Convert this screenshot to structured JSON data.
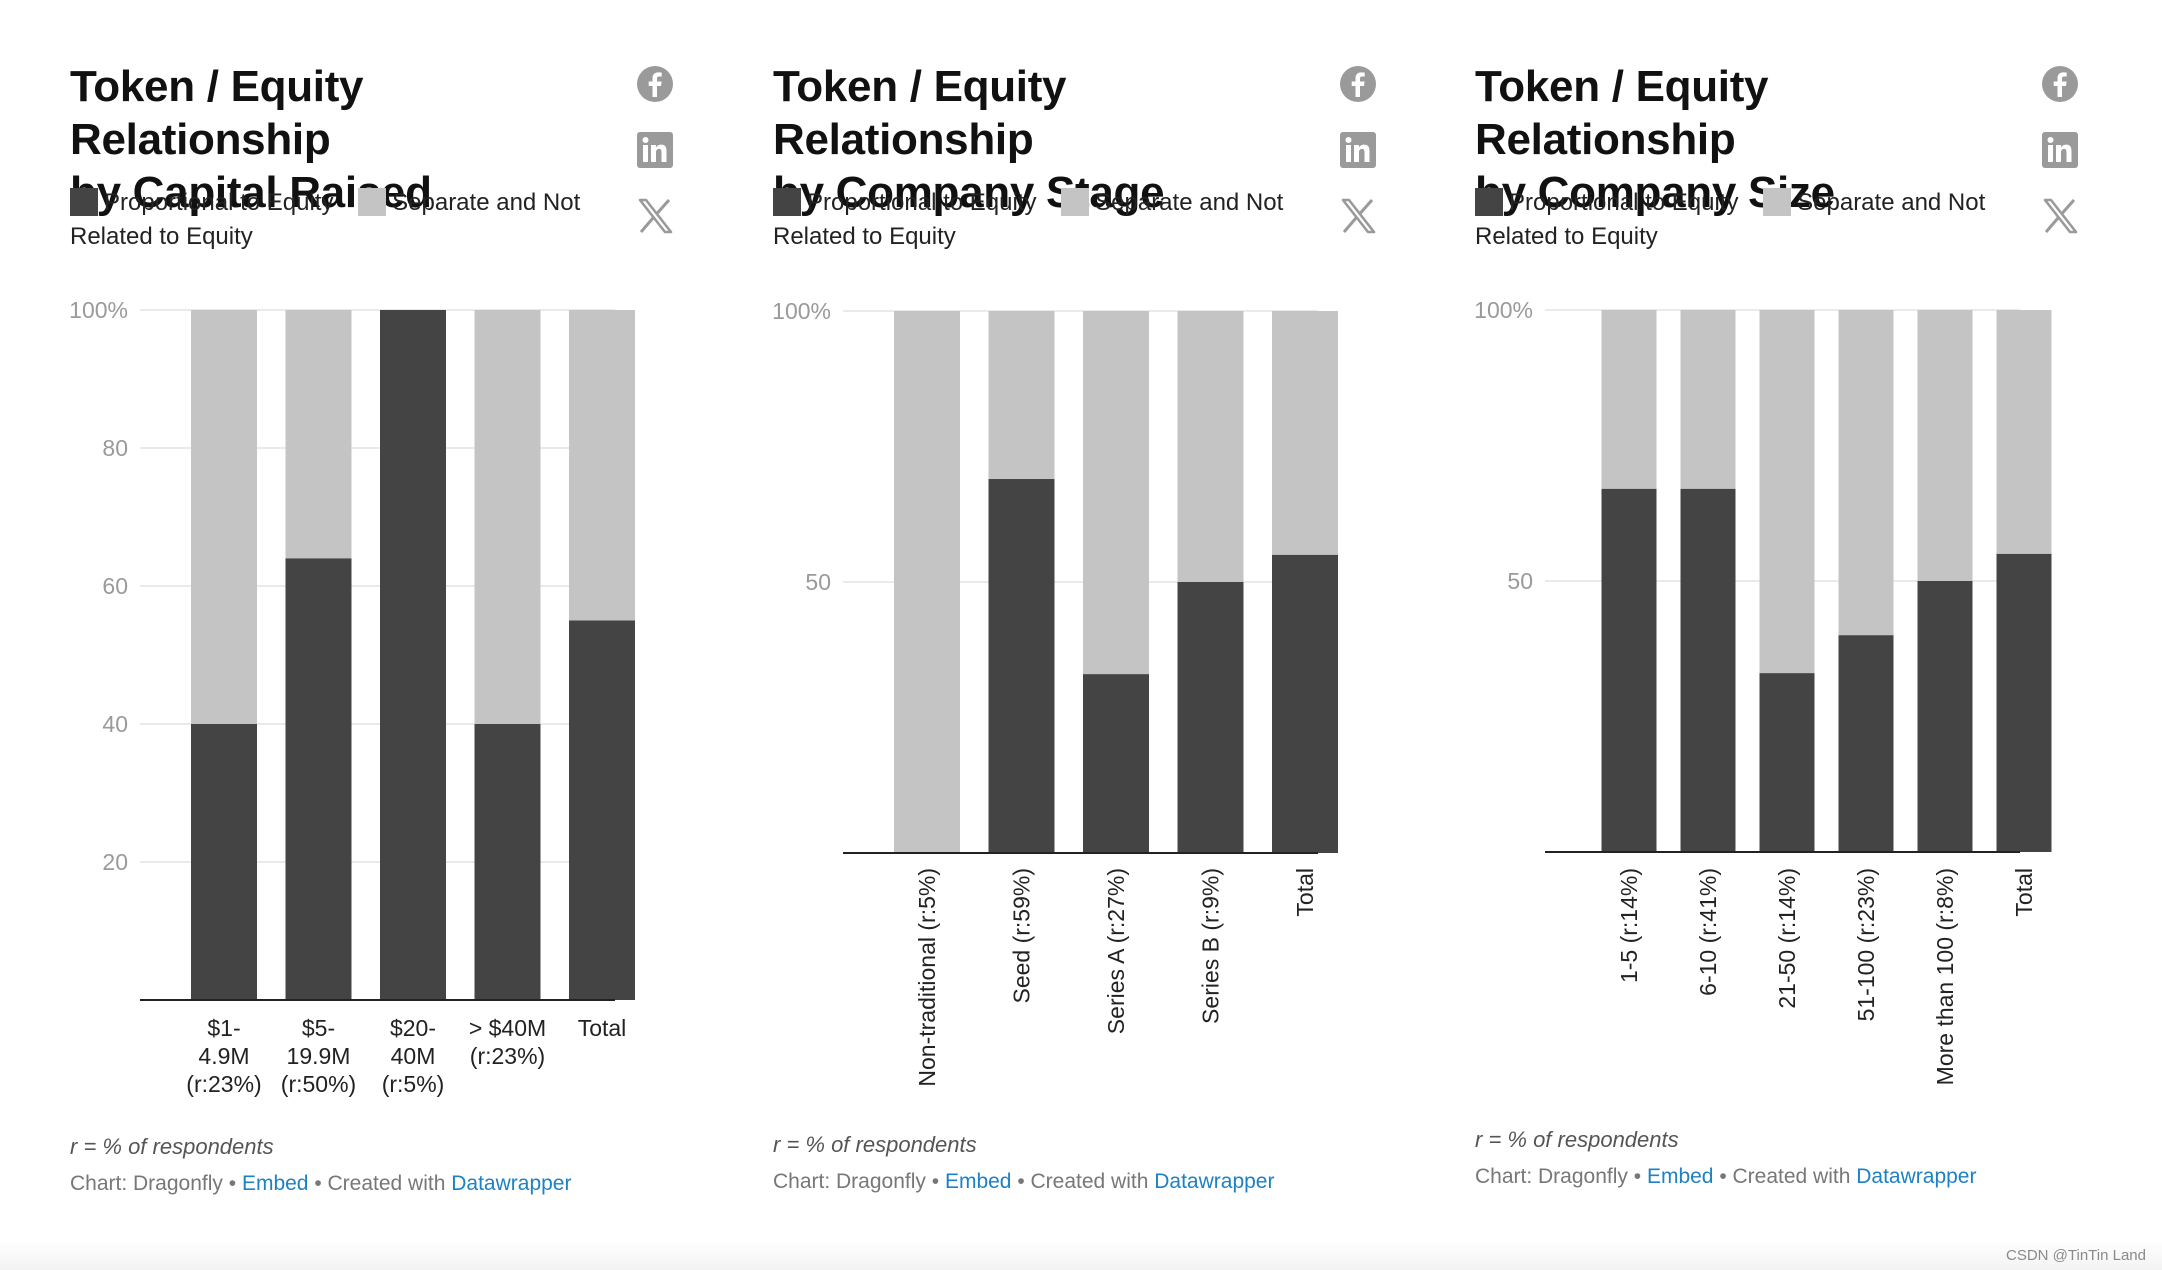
{
  "colors": {
    "proportional": "#444444",
    "separate": "#c4c4c4",
    "icon": "#9a9a9a",
    "link": "#1d81c4"
  },
  "social_icons": [
    "facebook-icon",
    "linkedin-icon",
    "x-icon"
  ],
  "legend": {
    "proportional": "Proportional to Equity",
    "separate": "Separate and Not Related to Equity"
  },
  "watermark": "CSDN @TinTin Land",
  "charts": [
    {
      "title_line1": "Token / Equity Relationship",
      "title_line2": "by Capital Raised",
      "note": "r = % of respondents",
      "byline": {
        "source": "Chart: Dragonfly",
        "embed": "Embed",
        "created": "Created with",
        "tool": "Datawrapper"
      }
    },
    {
      "title_line1": "Token / Equity Relationship",
      "title_line2": "by Company Stage",
      "note": "r = % of respondents",
      "byline": {
        "source": "Chart: Dragonfly",
        "embed": "Embed",
        "created": "Created with",
        "tool": "Datawrapper"
      }
    },
    {
      "title_line1": "Token / Equity Relationship",
      "title_line2": "by Company Size",
      "note": "r = % of respondents",
      "byline": {
        "source": "Chart: Dragonfly",
        "embed": "Embed",
        "created": "Created with",
        "tool": "Datawrapper"
      }
    }
  ],
  "chart_data": [
    {
      "type": "bar",
      "stacked": true,
      "title": "Token / Equity Relationship by Capital Raised",
      "categories": [
        "$1-4.9M (r:23%)",
        "$5-19.9M (r:50%)",
        "$20-40M (r:5%)",
        "> $40M (r:23%)",
        "Total"
      ],
      "category_lines": [
        [
          "$1-",
          "4.9M",
          "(r:23%)"
        ],
        [
          "$5-",
          "19.9M",
          "(r:50%)"
        ],
        [
          "$20-",
          "40M",
          "(r:5%)"
        ],
        [
          "> $40M",
          "(r:23%)"
        ],
        [
          "Total"
        ]
      ],
      "series": [
        {
          "name": "Proportional to Equity",
          "values": [
            40,
            64,
            100,
            40,
            55
          ]
        },
        {
          "name": "Separate and Not Related to Equity",
          "values": [
            60,
            36,
            0,
            60,
            45
          ]
        }
      ],
      "ylim": [
        0,
        100
      ],
      "yticks": [
        "20",
        "40",
        "60",
        "80",
        "100%"
      ],
      "ytick_values": [
        20,
        40,
        60,
        80,
        100
      ],
      "grid": true,
      "label_orientation": "horizontal"
    },
    {
      "type": "bar",
      "stacked": true,
      "title": "Token / Equity Relationship by Company Stage",
      "categories": [
        "Non-traditional (r:5%)",
        "Seed (r:59%)",
        "Series A (r:27%)",
        "Series B (r:9%)",
        "Total"
      ],
      "series": [
        {
          "name": "Proportional to Equity",
          "values": [
            0,
            69,
            33,
            50,
            55
          ]
        },
        {
          "name": "Separate and Not Related to Equity",
          "values": [
            100,
            31,
            67,
            50,
            45
          ]
        }
      ],
      "ylim": [
        0,
        100
      ],
      "yticks": [
        "50",
        "100%"
      ],
      "ytick_values": [
        50,
        100
      ],
      "grid": true,
      "label_orientation": "vertical"
    },
    {
      "type": "bar",
      "stacked": true,
      "title": "Token / Equity Relationship by Company Size",
      "categories": [
        "1-5 (r:14%)",
        "6-10 (r:41%)",
        "21-50 (r:14%)",
        "51-100 (r:23%)",
        "More than 100 (r:8%)",
        "Total"
      ],
      "series": [
        {
          "name": "Proportional to Equity",
          "values": [
            67,
            67,
            33,
            40,
            50,
            55
          ]
        },
        {
          "name": "Separate and Not Related to Equity",
          "values": [
            33,
            33,
            67,
            60,
            50,
            45
          ]
        }
      ],
      "ylim": [
        0,
        100
      ],
      "yticks": [
        "50",
        "100%"
      ],
      "ytick_values": [
        50,
        100
      ],
      "grid": true,
      "label_orientation": "vertical"
    }
  ]
}
